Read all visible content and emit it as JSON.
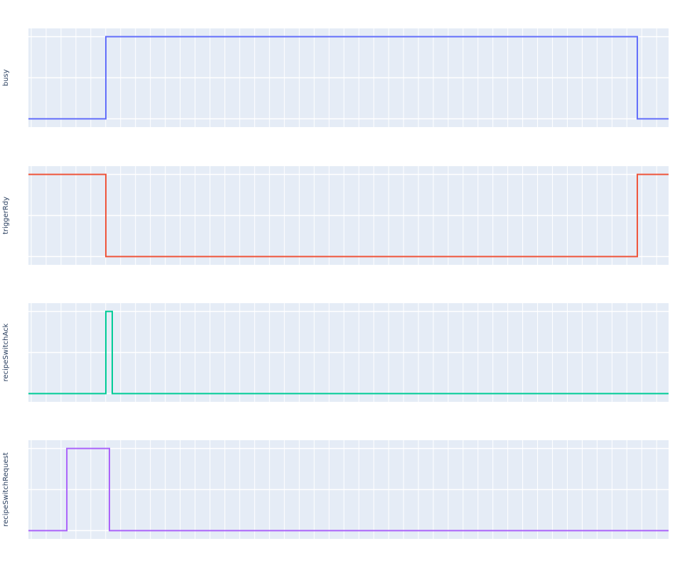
{
  "chart_data": {
    "type": "line",
    "line_shape": "step",
    "layout": "4 stacked subplots, shared x axis",
    "grid": true,
    "xlim": [
      -0.19,
      42.8
    ],
    "x_grid_step": 1,
    "ylim": [
      -0.1,
      1.1
    ],
    "y_grid": [
      0,
      0.5,
      1
    ],
    "show_tick_labels": false,
    "background_color": "#e5ecf6",
    "subplots": [
      {
        "ylabel": "busy",
        "color": "#636efa",
        "x": [
          -0.19,
          5.01,
          40.7,
          42.8
        ],
        "y": [
          0,
          1,
          0,
          0
        ]
      },
      {
        "ylabel": "triggerRdy",
        "color": "#EF553B",
        "x": [
          -0.19,
          5.01,
          40.7,
          42.8
        ],
        "y": [
          1,
          0,
          1,
          1
        ]
      },
      {
        "ylabel": "recipeSwitchAck",
        "color": "#00cc96",
        "x": [
          -0.19,
          5.01,
          5.44,
          42.8
        ],
        "y": [
          0,
          1,
          0,
          0
        ]
      },
      {
        "ylabel": "recipeSwitchRequest",
        "color": "#ab63fa",
        "x": [
          -0.19,
          2.39,
          5.25,
          42.8
        ],
        "y": [
          0,
          1,
          0,
          0
        ]
      }
    ]
  }
}
